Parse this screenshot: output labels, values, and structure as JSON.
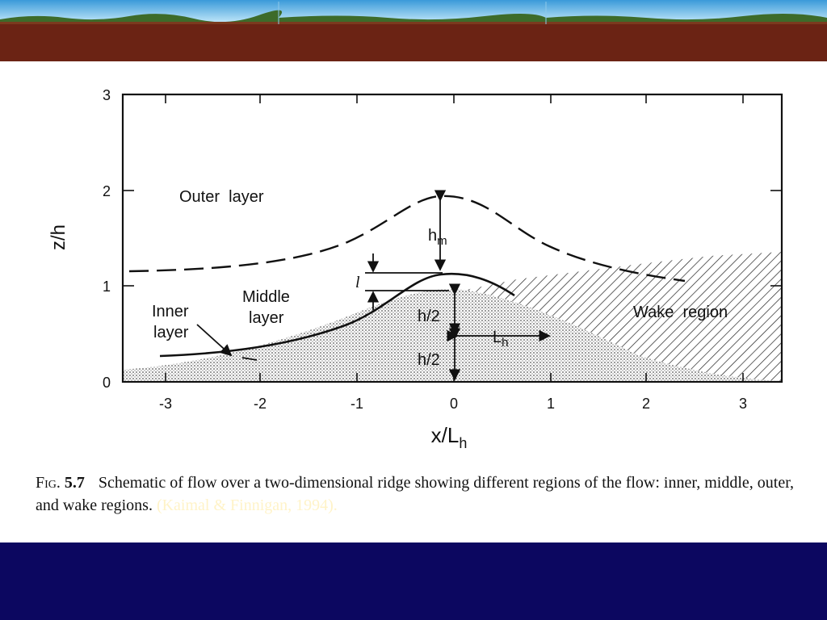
{
  "colors": {
    "sky": "#5fb6e8",
    "earth": "#6b2314",
    "footer": "#0c0760",
    "ink": "#111111",
    "citation": "#fff3c8"
  },
  "diagram": {
    "x_axis_label": "x/L",
    "x_axis_label_sub": "h",
    "y_axis_label": "z/h",
    "x_ticks": [
      "-3",
      "-2",
      "-1",
      "0",
      "1",
      "2",
      "3"
    ],
    "y_ticks": [
      "0",
      "1",
      "2",
      "3"
    ],
    "x_range": [
      -3.4,
      3.4
    ],
    "y_range": [
      0,
      3
    ],
    "labels": {
      "outer_layer": "Outer  layer",
      "middle_line1": "Middle",
      "middle_line2": "layer",
      "inner_line1": "Inner",
      "inner_line2": "layer",
      "wake": "Wake  region",
      "h_m": "h",
      "h_m_sub": "m",
      "l": "l",
      "h_half_upper": "h/2",
      "h_half_lower": "h/2",
      "L_h": "L",
      "L_h_sub": "h"
    }
  },
  "caption": {
    "lead": "Fig.",
    "number": "5.7",
    "text": "Schematic of flow over a two-dimensional ridge showing different regions of the flow: inner, middle, outer, and wake regions.",
    "citation": "(Kaimal & Finnigan, 1994)."
  }
}
